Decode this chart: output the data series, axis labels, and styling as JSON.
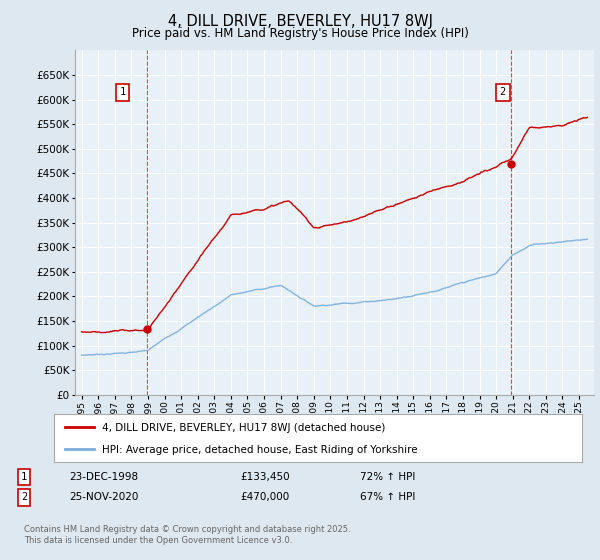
{
  "title": "4, DILL DRIVE, BEVERLEY, HU17 8WJ",
  "subtitle": "Price paid vs. HM Land Registry's House Price Index (HPI)",
  "legend_line1": "4, DILL DRIVE, BEVERLEY, HU17 8WJ (detached house)",
  "legend_line2": "HPI: Average price, detached house, East Riding of Yorkshire",
  "annotation1_label": "1",
  "annotation1_date": "23-DEC-1998",
  "annotation1_price": "£133,450",
  "annotation1_hpi": "72% ↑ HPI",
  "annotation2_label": "2",
  "annotation2_date": "25-NOV-2020",
  "annotation2_price": "£470,000",
  "annotation2_hpi": "67% ↑ HPI",
  "copyright": "Contains HM Land Registry data © Crown copyright and database right 2025.\nThis data is licensed under the Open Government Licence v3.0.",
  "ylim": [
    0,
    700000
  ],
  "yticks": [
    0,
    50000,
    100000,
    150000,
    200000,
    250000,
    300000,
    350000,
    400000,
    450000,
    500000,
    550000,
    600000,
    650000
  ],
  "red_color": "#cc0000",
  "blue_color": "#7aaddc",
  "background_color": "#dde8f0",
  "plot_bg_color": "#e8f0f8",
  "grid_color": "#ffffff",
  "sale1_year": 1998.97,
  "sale1_price": 133450,
  "sale2_year": 2020.9,
  "sale2_price": 470000
}
